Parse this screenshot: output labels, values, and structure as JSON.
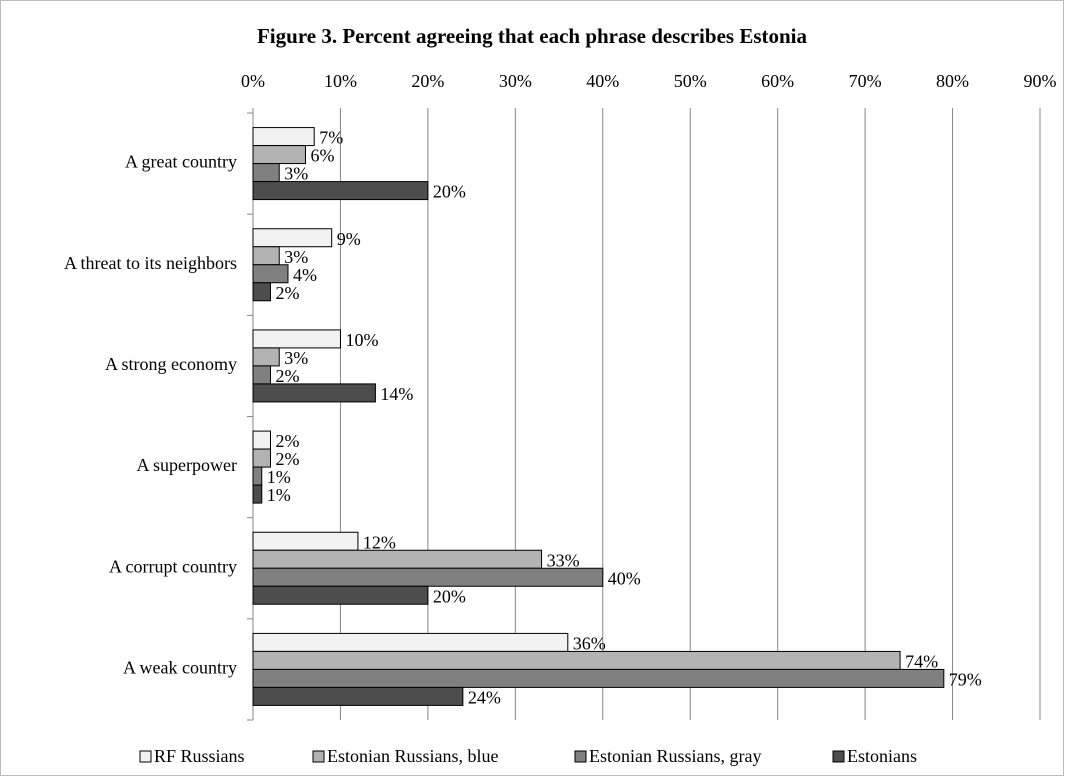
{
  "chart_data": {
    "type": "bar",
    "orientation": "horizontal",
    "title": "Figure 3. Percent agreeing that each phrase describes Estonia",
    "categories": [
      "A great country",
      "A threat to its neighbors",
      "A strong economy",
      "A superpower",
      "A corrupt country",
      "A weak country"
    ],
    "series": [
      {
        "name": "RF Russians",
        "color": "#f2f2f2",
        "values": [
          7,
          9,
          10,
          2,
          12,
          36
        ],
        "value_labels": [
          "7%",
          "9%",
          "10%",
          "2%",
          "12%",
          "36%"
        ]
      },
      {
        "name": "Estonian Russians, blue",
        "color": "#b3b3b3",
        "values": [
          6,
          3,
          3,
          2,
          33,
          74
        ],
        "value_labels": [
          "6%",
          "3%",
          "3%",
          "2%",
          "33%",
          "74%"
        ]
      },
      {
        "name": "Estonian Russians, gray",
        "color": "#808080",
        "values": [
          3,
          4,
          2,
          1,
          40,
          79
        ],
        "value_labels": [
          "3%",
          "4%",
          "2%",
          "1%",
          "40%",
          "79%"
        ]
      },
      {
        "name": "Estonians",
        "color": "#4d4d4d",
        "values": [
          20,
          2,
          14,
          1,
          20,
          24
        ],
        "value_labels": [
          "20%",
          "2%",
          "14%",
          "1%",
          "20%",
          "24%"
        ]
      }
    ],
    "xlim": [
      0,
      90
    ],
    "xticks": [
      {
        "value": 0,
        "label": "0%"
      },
      {
        "value": 10,
        "label": "10%"
      },
      {
        "value": 20,
        "label": "20%"
      },
      {
        "value": 30,
        "label": "30%"
      },
      {
        "value": 40,
        "label": "40%"
      },
      {
        "value": 50,
        "label": "50%"
      },
      {
        "value": 60,
        "label": "60%"
      },
      {
        "value": 70,
        "label": "70%"
      },
      {
        "value": 80,
        "label": "80%"
      },
      {
        "value": 90,
        "label": "90%"
      }
    ],
    "grid": true,
    "legend": "bottom"
  }
}
